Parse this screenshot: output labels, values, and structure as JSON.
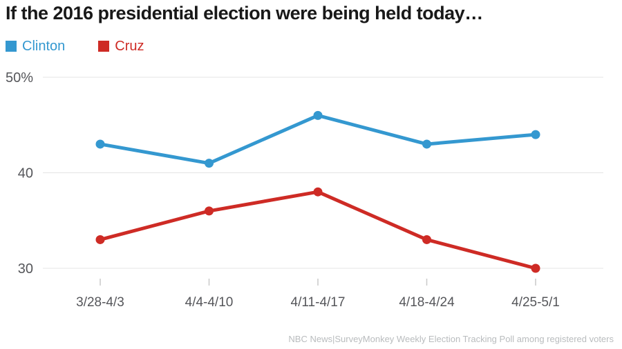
{
  "title": "If the 2016 presidential election were being held today…",
  "legend": [
    {
      "label": "Clinton",
      "color": "#3498d0"
    },
    {
      "label": "Cruz",
      "color": "#ce2b25"
    }
  ],
  "footer": "NBC News|SurveyMonkey Weekly Election Tracking Poll among registered voters",
  "colors": {
    "clinton": "#3498d0",
    "cruz": "#ce2b25",
    "gridline": "#e4e4e4",
    "tick": "#c9c9c9",
    "axis_text": "#55565a",
    "title_text": "#191919",
    "source_text": "#b9bcbe"
  },
  "chart_data": {
    "type": "line",
    "title": "If the 2016 presidential election were being held today…",
    "categories": [
      "3/28-4/3",
      "4/4-4/10",
      "4/11-4/17",
      "4/18-4/24",
      "4/25-5/1"
    ],
    "series": [
      {
        "name": "Clinton",
        "color": "#3498d0",
        "values": [
          43,
          41,
          46,
          43,
          44
        ]
      },
      {
        "name": "Cruz",
        "color": "#ce2b25",
        "values": [
          33,
          36,
          38,
          33,
          30
        ]
      }
    ],
    "xlabel": "",
    "ylabel": "",
    "yticks": [
      30,
      40,
      50
    ],
    "ytick_labels": [
      "30",
      "40",
      "50%"
    ],
    "ylim": [
      30,
      50
    ],
    "grid": true,
    "legend_position": "top-left",
    "source_note": "NBC News|SurveyMonkey Weekly Election Tracking Poll among registered voters"
  }
}
